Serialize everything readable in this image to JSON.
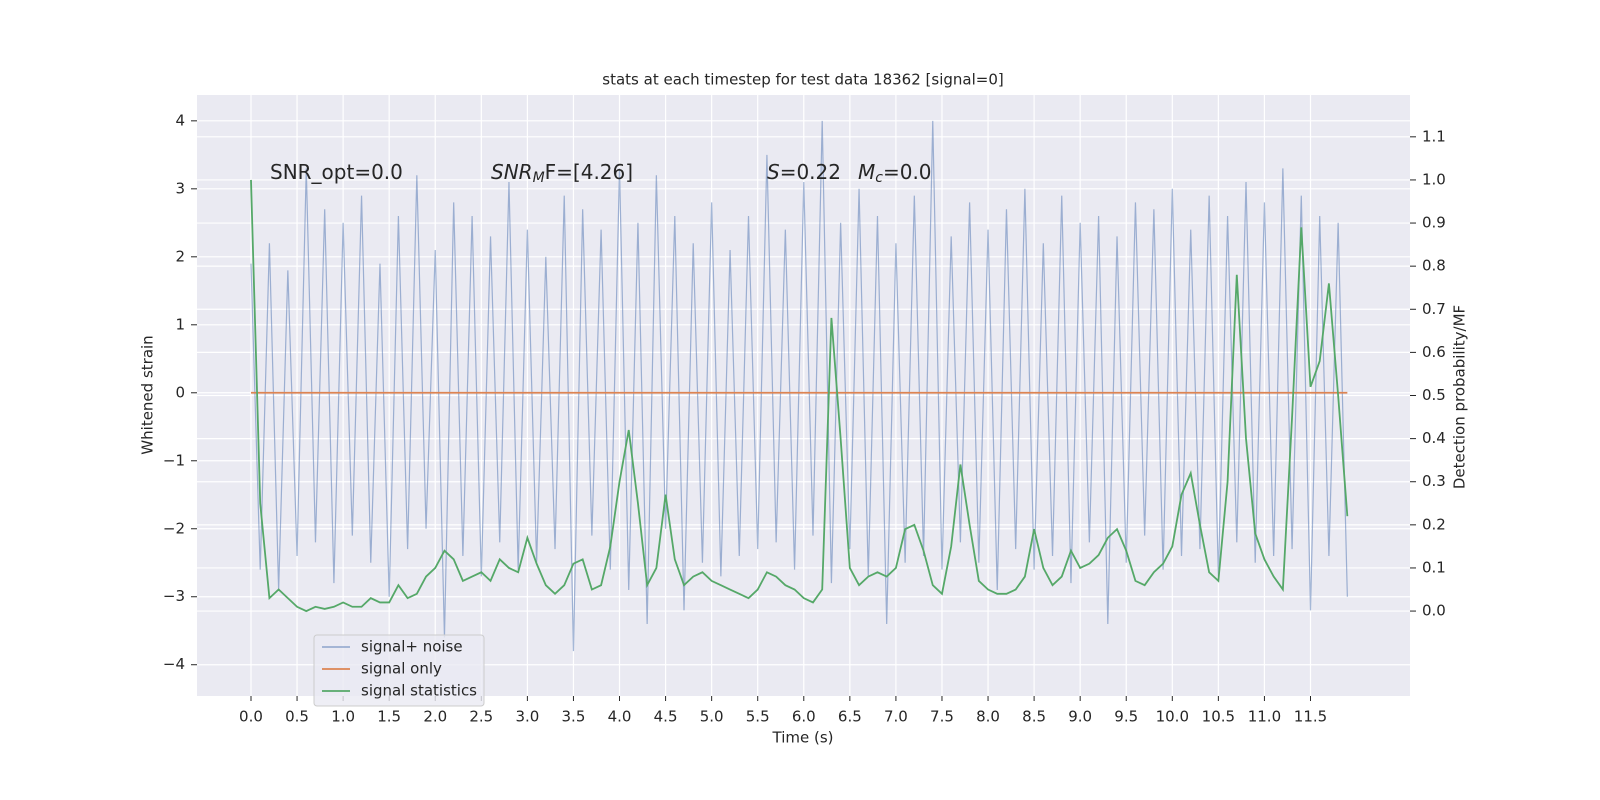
{
  "chart_data": {
    "type": "line",
    "title": "stats at each timestep for test data 18362 [signal=0]",
    "x_label": "Time (s)",
    "y_label": "Whitened strain",
    "y2_label": "Detection probability/MF",
    "background": "#eaeaf2",
    "grid": true,
    "legend": "lower left",
    "annotations": [
      [
        {
          "text": "SNR_opt=0.0"
        }
      ],
      [
        {
          "text": "SNR",
          "italic": true
        },
        {
          "text": "M",
          "italic": true,
          "sub": true
        },
        {
          "text": "F=[4.26]"
        }
      ],
      [
        {
          "text": "S",
          "italic": true
        },
        {
          "text": "=0.22"
        }
      ],
      [
        {
          "text": "M",
          "italic": true
        },
        {
          "text": "c",
          "italic": true,
          "sub": true
        },
        {
          "text": "=0.0"
        }
      ]
    ],
    "x": [
      0.0,
      0.1,
      0.2,
      0.3,
      0.4,
      0.5,
      0.6,
      0.7,
      0.8,
      0.9,
      1.0,
      1.1,
      1.2,
      1.3,
      1.4,
      1.5,
      1.6,
      1.7,
      1.8,
      1.9,
      2.0,
      2.1,
      2.2,
      2.3,
      2.4,
      2.5,
      2.6,
      2.7,
      2.8,
      2.9,
      3.0,
      3.1,
      3.2,
      3.3,
      3.4,
      3.5,
      3.6,
      3.7,
      3.8,
      3.9,
      4.0,
      4.1,
      4.2,
      4.3,
      4.4,
      4.5,
      4.6,
      4.7,
      4.8,
      4.9,
      5.0,
      5.1,
      5.2,
      5.3,
      5.4,
      5.5,
      5.6,
      5.7,
      5.8,
      5.9,
      6.0,
      6.1,
      6.2,
      6.3,
      6.4,
      6.5,
      6.6,
      6.7,
      6.8,
      6.9,
      7.0,
      7.1,
      7.2,
      7.3,
      7.4,
      7.5,
      7.6,
      7.7,
      7.8,
      7.9,
      8.0,
      8.1,
      8.2,
      8.3,
      8.4,
      8.5,
      8.6,
      8.7,
      8.8,
      8.9,
      9.0,
      9.1,
      9.2,
      9.3,
      9.4,
      9.5,
      9.6,
      9.7,
      9.8,
      9.9,
      10.0,
      10.1,
      10.2,
      10.3,
      10.4,
      10.5,
      10.6,
      10.7,
      10.8,
      10.9,
      11.0,
      11.1,
      11.2,
      11.3,
      11.4,
      11.5,
      11.6,
      11.7,
      11.8,
      11.9
    ],
    "series": [
      {
        "name": "signal+ noise",
        "color": "#4c72b0",
        "opacity": 0.5,
        "axis": "y",
        "values": [
          1.9,
          -2.6,
          2.2,
          -2.9,
          1.8,
          -2.4,
          3.3,
          -2.2,
          2.7,
          -2.8,
          2.5,
          -2.1,
          2.9,
          -2.5,
          1.9,
          -3.0,
          2.6,
          -2.3,
          3.2,
          -2.0,
          2.1,
          -3.6,
          2.8,
          -2.4,
          2.6,
          -2.7,
          2.3,
          -2.2,
          3.1,
          -2.6,
          2.4,
          -2.5,
          2.0,
          -2.3,
          2.9,
          -3.8,
          2.7,
          -2.1,
          2.4,
          -2.6,
          3.3,
          -2.9,
          2.5,
          -3.4,
          3.2,
          -2.0,
          2.6,
          -3.2,
          2.2,
          -2.5,
          2.8,
          -2.7,
          2.1,
          -2.4,
          2.6,
          -2.3,
          3.5,
          -2.2,
          2.4,
          -2.6,
          3.1,
          -2.1,
          4.0,
          -2.8,
          2.5,
          -2.3,
          3.0,
          -2.7,
          2.6,
          -3.4,
          2.2,
          -2.5,
          2.9,
          -2.4,
          4.0,
          -2.6,
          2.3,
          -2.2,
          2.8,
          -2.5,
          2.4,
          -2.9,
          2.7,
          -2.3,
          3.0,
          -2.6,
          2.2,
          -2.4,
          2.9,
          -2.8,
          2.5,
          -2.2,
          2.6,
          -3.4,
          2.3,
          -2.5,
          2.8,
          -2.1,
          2.7,
          -2.6,
          3.0,
          -2.4,
          2.4,
          -2.3,
          2.9,
          -2.7,
          2.6,
          -2.2,
          3.1,
          -2.5,
          2.8,
          -2.4,
          3.3,
          -2.3,
          2.9,
          -3.2,
          2.6,
          -2.4,
          2.5,
          -3.0
        ]
      },
      {
        "name": "signal only",
        "color": "#dd8452",
        "opacity": 1,
        "axis": "y",
        "values": [
          0,
          0,
          0,
          0,
          0,
          0,
          0,
          0,
          0,
          0,
          0,
          0,
          0,
          0,
          0,
          0,
          0,
          0,
          0,
          0,
          0,
          0,
          0,
          0,
          0,
          0,
          0,
          0,
          0,
          0,
          0,
          0,
          0,
          0,
          0,
          0,
          0,
          0,
          0,
          0,
          0,
          0,
          0,
          0,
          0,
          0,
          0,
          0,
          0,
          0,
          0,
          0,
          0,
          0,
          0,
          0,
          0,
          0,
          0,
          0,
          0,
          0,
          0,
          0,
          0,
          0,
          0,
          0,
          0,
          0,
          0,
          0,
          0,
          0,
          0,
          0,
          0,
          0,
          0,
          0,
          0,
          0,
          0,
          0,
          0,
          0,
          0,
          0,
          0,
          0,
          0,
          0,
          0,
          0,
          0,
          0,
          0,
          0,
          0,
          0,
          0,
          0,
          0,
          0,
          0,
          0,
          0,
          0,
          0,
          0,
          0,
          0,
          0,
          0,
          0,
          0,
          0,
          0,
          0,
          0
        ]
      },
      {
        "name": "signal statistics",
        "color": "#55a868",
        "opacity": 1,
        "axis": "y2",
        "values": [
          1.0,
          0.25,
          0.03,
          0.05,
          0.03,
          0.01,
          0.0,
          0.01,
          0.005,
          0.01,
          0.02,
          0.01,
          0.01,
          0.03,
          0.02,
          0.02,
          0.06,
          0.03,
          0.04,
          0.08,
          0.1,
          0.14,
          0.12,
          0.07,
          0.08,
          0.09,
          0.07,
          0.12,
          0.1,
          0.09,
          0.17,
          0.11,
          0.06,
          0.04,
          0.06,
          0.11,
          0.12,
          0.05,
          0.06,
          0.15,
          0.3,
          0.42,
          0.25,
          0.06,
          0.1,
          0.27,
          0.12,
          0.06,
          0.08,
          0.09,
          0.07,
          0.06,
          0.05,
          0.04,
          0.03,
          0.05,
          0.09,
          0.08,
          0.06,
          0.05,
          0.03,
          0.02,
          0.05,
          0.68,
          0.4,
          0.1,
          0.06,
          0.08,
          0.09,
          0.08,
          0.1,
          0.19,
          0.2,
          0.14,
          0.06,
          0.04,
          0.15,
          0.34,
          0.2,
          0.07,
          0.05,
          0.04,
          0.04,
          0.05,
          0.08,
          0.19,
          0.1,
          0.06,
          0.08,
          0.14,
          0.1,
          0.11,
          0.13,
          0.17,
          0.19,
          0.14,
          0.07,
          0.06,
          0.09,
          0.11,
          0.15,
          0.27,
          0.32,
          0.2,
          0.09,
          0.07,
          0.3,
          0.78,
          0.4,
          0.18,
          0.12,
          0.08,
          0.05,
          0.45,
          0.89,
          0.52,
          0.58,
          0.76,
          0.5,
          0.22
        ]
      }
    ],
    "xlim": [
      -0.586,
      12.58
    ],
    "ylim": [
      -4.46,
      4.38
    ],
    "y2lim": [
      -0.197,
      1.197
    ],
    "xticks": [
      {
        "value": 0,
        "label": "0.0"
      },
      {
        "value": 0.5,
        "label": "0.5"
      },
      {
        "value": 1,
        "label": "1.0"
      },
      {
        "value": 1.5,
        "label": "1.5"
      },
      {
        "value": 2,
        "label": "2.0"
      },
      {
        "value": 2.5,
        "label": "2.5"
      },
      {
        "value": 3,
        "label": "3.0"
      },
      {
        "value": 3.5,
        "label": "3.5"
      },
      {
        "value": 4,
        "label": "4.0"
      },
      {
        "value": 4.5,
        "label": "4.5"
      },
      {
        "value": 5,
        "label": "5.0"
      },
      {
        "value": 5.5,
        "label": "5.5"
      },
      {
        "value": 6,
        "label": "6.0"
      },
      {
        "value": 6.5,
        "label": "6.5"
      },
      {
        "value": 7,
        "label": "7.0"
      },
      {
        "value": 7.5,
        "label": "7.5"
      },
      {
        "value": 8,
        "label": "8.0"
      },
      {
        "value": 8.5,
        "label": "8.5"
      },
      {
        "value": 9,
        "label": "9.0"
      },
      {
        "value": 9.5,
        "label": "9.5"
      },
      {
        "value": 10,
        "label": "10.0"
      },
      {
        "value": 10.5,
        "label": "10.5"
      },
      {
        "value": 11,
        "label": "11.0"
      },
      {
        "value": 11.5,
        "label": "11.5"
      }
    ],
    "yticks": [
      {
        "value": -4,
        "label": "−4"
      },
      {
        "value": -3,
        "label": "−3"
      },
      {
        "value": -2,
        "label": "−2"
      },
      {
        "value": -1,
        "label": "−1"
      },
      0,
      1,
      2,
      3,
      4
    ],
    "y2ticks": [
      {
        "value": 0,
        "label": "0.0"
      },
      0.1,
      0.2,
      0.3,
      0.4,
      0.5,
      0.6,
      0.7,
      0.8,
      0.9,
      {
        "value": 1,
        "label": "1.0"
      },
      1.1
    ]
  }
}
